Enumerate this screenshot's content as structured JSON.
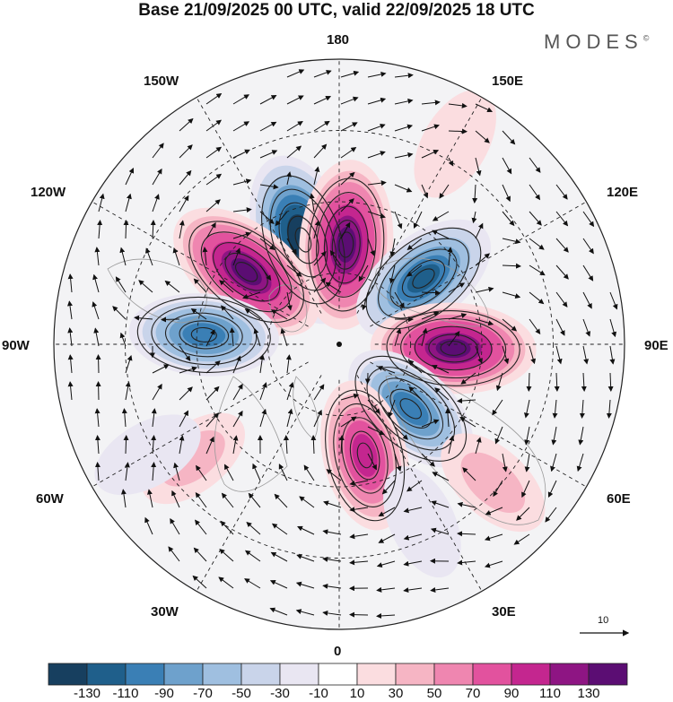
{
  "header": {
    "title": "Base 21/09/2025 00 UTC, valid 22/09/2025 18 UTC",
    "logo": "MODES",
    "logo_mark": "©"
  },
  "longitude_labels": {
    "n180": "180",
    "w150": "150W",
    "e150": "150E",
    "w120": "120W",
    "e120": "120E",
    "w90": "90W",
    "e90": "90E",
    "w60": "60W",
    "e60": "60E",
    "w30": "30W",
    "e30": "30E",
    "zero": "0"
  },
  "vector_reference": {
    "label": "10"
  },
  "colorbar": {
    "colors": [
      "#173f5f",
      "#1f5f8b",
      "#3a7fb5",
      "#6ea1cc",
      "#9fbfe0",
      "#c9d4ea",
      "#e9e6f2",
      "#ffffff",
      "#fbdde0",
      "#f6b5c4",
      "#ef86b0",
      "#e2529e",
      "#c4268f",
      "#8e1583",
      "#5b0d73"
    ],
    "ticks": [
      "-130",
      "-110",
      "-90",
      "-70",
      "-50",
      "-30",
      "-10",
      "10",
      "30",
      "50",
      "70",
      "90",
      "110",
      "130"
    ]
  },
  "anomaly_centers": [
    {
      "lon": -161,
      "lat": 59,
      "value": -150
    },
    {
      "lon": 176,
      "lat": 62,
      "value": 140
    },
    {
      "lon": -128,
      "lat": 57,
      "value": 140
    },
    {
      "lon": 128,
      "lat": 60,
      "value": -110
    },
    {
      "lon": -94,
      "lat": 52,
      "value": -95
    },
    {
      "lon": 88,
      "lat": 58,
      "value": 130
    },
    {
      "lon": 48,
      "lat": 63,
      "value": -95
    },
    {
      "lon": -52,
      "lat": 38,
      "value": 30
    },
    {
      "lon": 13,
      "lat": 58,
      "value": 100
    },
    {
      "lon": 48,
      "lat": 32,
      "value": 40
    },
    {
      "lon": 150,
      "lat": 25,
      "value": 25
    },
    {
      "lon": 25,
      "lat": 35,
      "value": -25
    },
    {
      "lon": -60,
      "lat": 28,
      "value": -20
    }
  ]
}
